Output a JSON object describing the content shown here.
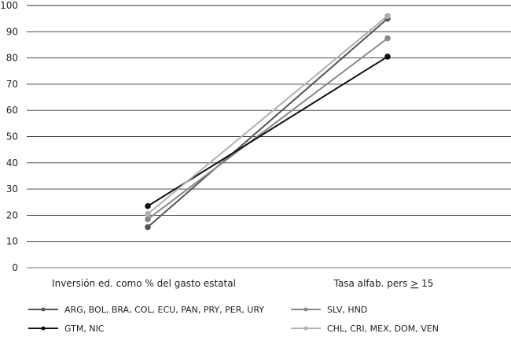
{
  "chart_data": {
    "type": "line",
    "categories": [
      "Inversión ed. como % del gasto estatal",
      "Tasa alfab. pers ≥ 15"
    ],
    "category_labels": [
      {
        "text": "Inversión ed. como % del gasto estatal"
      },
      {
        "prefix": "Tasa alfab. pers ",
        "underlined": ">",
        "suffix": " 15"
      }
    ],
    "ylim": [
      0,
      100
    ],
    "yticks": [
      0,
      10,
      20,
      30,
      40,
      50,
      60,
      70,
      80,
      90,
      100
    ],
    "grid": true,
    "legend_position": "bottom",
    "series": [
      {
        "name": "ARG, BOL, BRA, COL, ECU, PAN, PRY, PER, URY",
        "values": [
          15.5,
          95
        ],
        "color": "#555555"
      },
      {
        "name": "SLV, HND",
        "values": [
          18.5,
          87.5
        ],
        "color": "#888888"
      },
      {
        "name": "GTM, NIC",
        "values": [
          23.5,
          80.5
        ],
        "color": "#111111"
      },
      {
        "name": "CHL, CRI, MEX, DOM, VEN",
        "values": [
          20.5,
          96
        ],
        "color": "#b0b0b0"
      }
    ]
  }
}
